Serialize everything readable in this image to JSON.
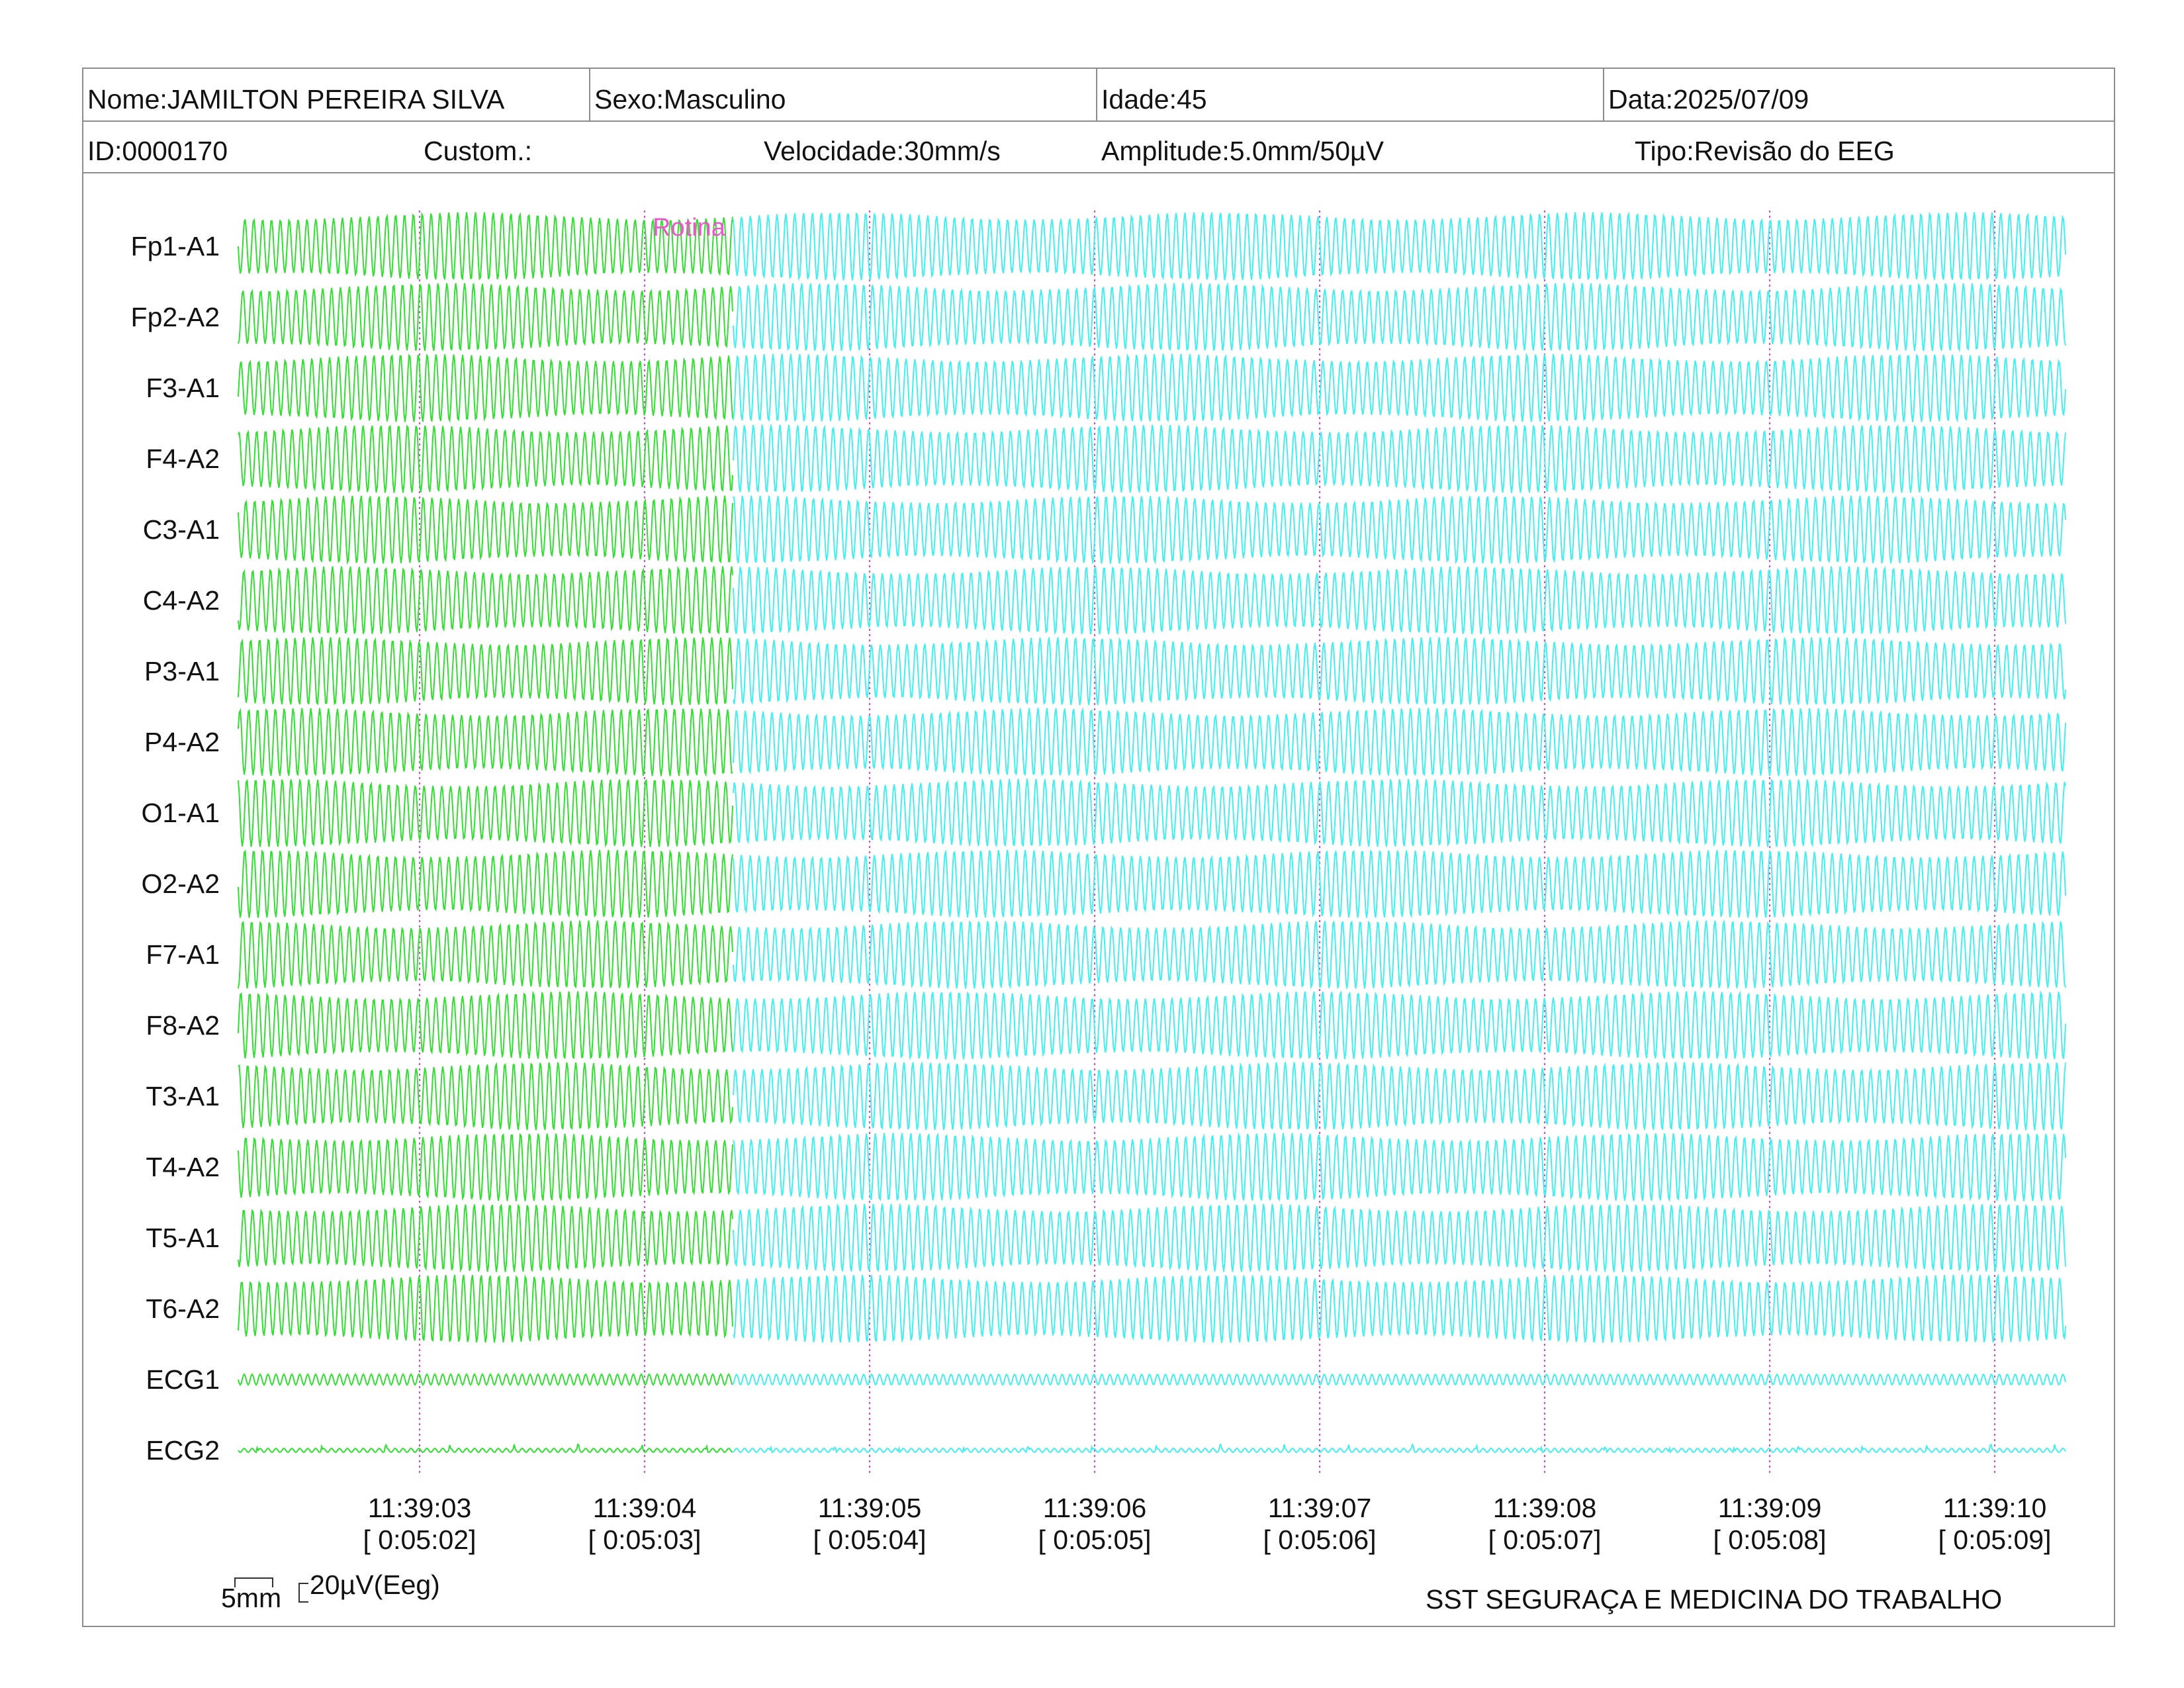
{
  "header": {
    "nome": "Nome:JAMILTON PEREIRA SILVA",
    "sexo": "Sexo:Masculino",
    "idade": "Idade:45",
    "data": "Data:2025/07/09",
    "id": "ID:0000170",
    "custom": "Custom.:",
    "velocidade": "Velocidade:30mm/s",
    "amplitude": "Amplitude:5.0mm/50µV",
    "tipo": "Tipo:Revisão do EEG"
  },
  "chart_data": {
    "type": "line",
    "title": "",
    "channels": [
      "Fp1-A1",
      "Fp2-A2",
      "F3-A1",
      "F4-A2",
      "C3-A1",
      "C4-A2",
      "P3-A1",
      "P4-A2",
      "O1-A1",
      "O2-A2",
      "F7-A1",
      "F8-A2",
      "T3-A1",
      "T4-A2",
      "T5-A1",
      "T6-A2",
      "ECG1",
      "ECG2"
    ],
    "time_ticks": [
      {
        "time": "11:39:03",
        "elapsed": "[ 0:05:02]"
      },
      {
        "time": "11:39:04",
        "elapsed": "[ 0:05:03]"
      },
      {
        "time": "11:39:05",
        "elapsed": "[ 0:05:04]"
      },
      {
        "time": "11:39:06",
        "elapsed": "[ 0:05:05]"
      },
      {
        "time": "11:39:07",
        "elapsed": "[ 0:05:06]"
      },
      {
        "time": "11:39:08",
        "elapsed": "[ 0:05:07]"
      },
      {
        "time": "11:39:09",
        "elapsed": "[ 0:05:08]"
      },
      {
        "time": "11:39:10",
        "elapsed": "[ 0:05:09]"
      }
    ],
    "annotation": "Rotina",
    "grid": "vertical dotted at each second",
    "segments": [
      {
        "start": "11:39:02.2",
        "end": "11:39:04.4",
        "color": "#33dd33"
      },
      {
        "start": "11:39:04.4",
        "end": "11:39:10.3",
        "color": "#44eeee"
      }
    ],
    "colors": {
      "segment1": "#33dd33",
      "segment2": "#44eeee",
      "grid": "#dd44dd",
      "annotation": "#ee55cc"
    }
  },
  "scale": {
    "time_label": "5mm",
    "amplitude_label": "20µV(Eeg)"
  },
  "footer_text": "SST SEGURAÇA E MEDICINA DO TRABALHO"
}
